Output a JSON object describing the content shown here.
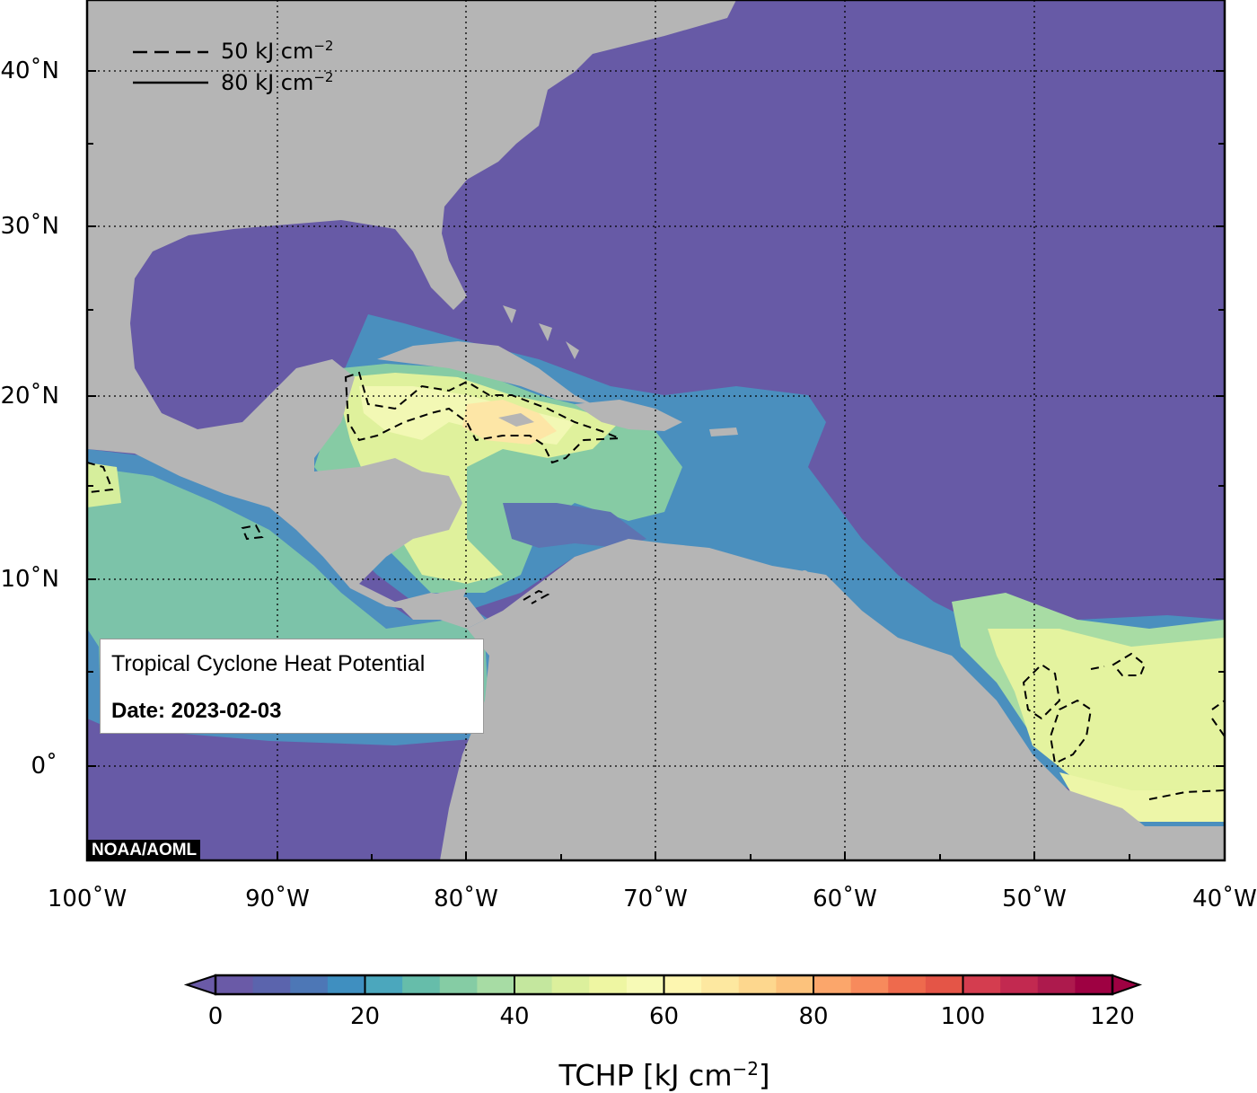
{
  "title": "Tropical Cyclone Heat Potential",
  "date_label": "Date: 2023-02-03",
  "credit": "NOAA/AOML",
  "contour_legend": [
    {
      "label": "50 kJ cm",
      "sup": "−2",
      "style": "dashed"
    },
    {
      "label": "80 kJ cm",
      "sup": "−2",
      "style": "solid"
    }
  ],
  "map_extent": {
    "lon_min": -100,
    "lon_max": -40,
    "lat_min": -5,
    "lat_max": 44
  },
  "lat_ticks": [
    {
      "value": 40,
      "label": "40˚N"
    },
    {
      "value": 30,
      "label": "30˚N"
    },
    {
      "value": 20,
      "label": "20˚N"
    },
    {
      "value": 10,
      "label": "10˚N"
    },
    {
      "value": 0,
      "label": "0˚"
    }
  ],
  "lon_ticks": [
    {
      "value": -100,
      "label": "100˚W"
    },
    {
      "value": -90,
      "label": "90˚W"
    },
    {
      "value": -80,
      "label": "80˚W"
    },
    {
      "value": -70,
      "label": "70˚W"
    },
    {
      "value": -60,
      "label": "60˚W"
    },
    {
      "value": -50,
      "label": "50˚W"
    },
    {
      "value": -40,
      "label": "40˚W"
    }
  ],
  "colorbar": {
    "min": 0,
    "max": 120,
    "step": 5,
    "tick_labels": [
      "0",
      "20",
      "40",
      "60",
      "80",
      "100",
      "120"
    ],
    "title": "TCHP [kJ cm",
    "title_sup": "−2",
    "title_end": "]",
    "colors": [
      "#6a5aa7",
      "#5b64ad",
      "#4d77b6",
      "#3f8fc0",
      "#4ba7bd",
      "#66bdaa",
      "#85cca4",
      "#a7dca4",
      "#c4e79e",
      "#dcf09c",
      "#eef6a2",
      "#f7fab6",
      "#fdf6b0",
      "#fde8a0",
      "#fdd78e",
      "#fcc27c",
      "#fba66b",
      "#f78a5c",
      "#ee6a4d",
      "#e45547",
      "#d43d4f",
      "#c22950",
      "#ad1a4d",
      "#9e0142"
    ]
  },
  "colors": {
    "ocean_low": "#675aa6",
    "land": "#b5b5b5",
    "frame": "#000000"
  }
}
